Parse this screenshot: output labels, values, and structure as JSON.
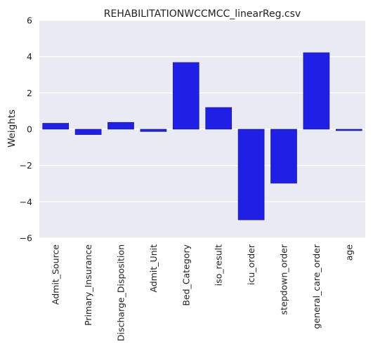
{
  "chart_data": {
    "type": "bar",
    "title": "REHABILITATIONWCCMCC_linearReg.csv",
    "xlabel": "",
    "ylabel": "Weights",
    "categories": [
      "Admit_Source",
      "Primary_Insurance",
      "Discharge_Disposition",
      "Admit_Unit",
      "Bed_Category",
      "iso_result",
      "icu_order",
      "stepdown_order",
      "general_care_order",
      "age"
    ],
    "values": [
      0.33,
      -0.3,
      0.38,
      -0.13,
      3.68,
      1.2,
      -5.0,
      -2.98,
      4.22,
      -0.08
    ],
    "ylim": [
      -6,
      6
    ],
    "yticks": [
      -6,
      -4,
      -2,
      0,
      2,
      4,
      6
    ],
    "ytick_labels": [
      "−6",
      "−4",
      "−2",
      "0",
      "2",
      "4",
      "6"
    ],
    "grid": true,
    "bar_color": "#1f1fe6",
    "background_color": "#eaeaf2",
    "grid_color": "#ffffff"
  }
}
